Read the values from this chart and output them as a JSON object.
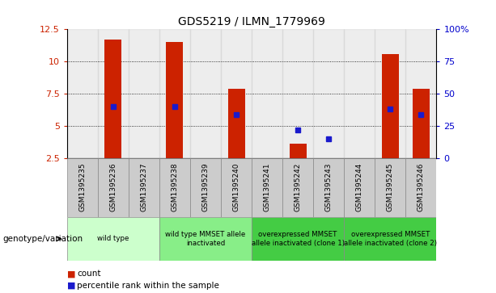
{
  "title": "GDS5219 / ILMN_1779969",
  "samples": [
    "GSM1395235",
    "GSM1395236",
    "GSM1395237",
    "GSM1395238",
    "GSM1395239",
    "GSM1395240",
    "GSM1395241",
    "GSM1395242",
    "GSM1395243",
    "GSM1395244",
    "GSM1395245",
    "GSM1395246"
  ],
  "counts": [
    2.5,
    11.7,
    2.5,
    11.5,
    2.5,
    7.9,
    2.5,
    3.6,
    2.5,
    2.5,
    10.6,
    7.9
  ],
  "percentiles_left": [
    null,
    6.5,
    null,
    6.5,
    null,
    5.9,
    null,
    4.7,
    4.0,
    null,
    6.3,
    5.9
  ],
  "ylim_left": [
    2.5,
    12.5
  ],
  "yticks_left": [
    2.5,
    5.0,
    7.5,
    10.0,
    12.5
  ],
  "ytick_labels_left": [
    "2.5",
    "5",
    "7.5",
    "10",
    "12.5"
  ],
  "yticks_right": [
    0,
    25,
    50,
    75,
    100
  ],
  "ytick_labels_right": [
    "0",
    "25",
    "50",
    "75",
    "100%"
  ],
  "bar_color": "#cc2200",
  "dot_color": "#1a1acc",
  "group_configs": [
    {
      "start": 0,
      "end": 2,
      "color": "#ccffcc",
      "label": "wild type"
    },
    {
      "start": 3,
      "end": 5,
      "color": "#88ee88",
      "label": "wild type MMSET allele\ninactivated"
    },
    {
      "start": 6,
      "end": 8,
      "color": "#44cc44",
      "label": "overexpressed MMSET\nallele inactivated (clone 1)"
    },
    {
      "start": 9,
      "end": 11,
      "color": "#44cc44",
      "label": "overexpressed MMSET\nallele inactivated (clone 2)"
    }
  ],
  "genotype_label": "genotype/variation",
  "legend_count_label": "count",
  "legend_pct_label": "percentile rank within the sample",
  "bar_width": 0.55,
  "sample_col_color": "#cccccc"
}
